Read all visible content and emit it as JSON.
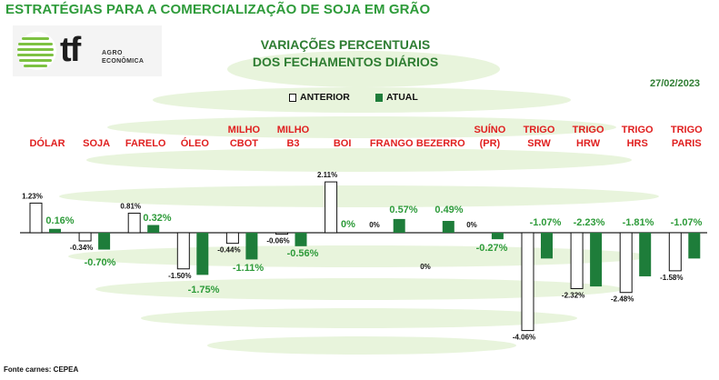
{
  "page_title": "ESTRATÉGIAS PARA A COMERCIALIZAÇÃO DE SOJA EM GRÃO",
  "logo": {
    "mark": "tf",
    "line1": "AGRO",
    "line2": "ECONÔMICA"
  },
  "chart_title_line1": "VARIAÇÕES PERCENTUAIS",
  "chart_title_line2": "DOS FECHAMENTOS DIÁRIOS",
  "date": "27/02/2023",
  "legend": {
    "anterior": "ANTERIOR",
    "atual": "ATUAL"
  },
  "source": "Fonte carnes: CEPEA",
  "colors": {
    "anterior_fill": "#ffffff",
    "anterior_border": "#111111",
    "atual": "#1e7d3a",
    "label_green": "#2e9b3a",
    "category_red": "#e02020",
    "title_green": "#2e7d32"
  },
  "chart_data": {
    "type": "bar",
    "categories": [
      [
        "DÓLAR"
      ],
      [
        "SOJA"
      ],
      [
        "FARELO"
      ],
      [
        "ÓLEO"
      ],
      [
        "MILHO",
        "CBOT"
      ],
      [
        "MILHO",
        "B3"
      ],
      [
        "BOI"
      ],
      [
        "FRANGO"
      ],
      [
        "BEZERRO"
      ],
      [
        "SUÍNO",
        "(PR)"
      ],
      [
        "TRIGO",
        "SRW"
      ],
      [
        "TRIGO",
        "HRW"
      ],
      [
        "TRIGO",
        "HRS"
      ],
      [
        "TRIGO",
        "PARIS"
      ]
    ],
    "series": [
      {
        "name": "ANTERIOR",
        "values": [
          1.23,
          -0.34,
          0.81,
          -1.5,
          -0.44,
          -0.06,
          2.11,
          0,
          0,
          0,
          -4.06,
          -2.32,
          -2.48,
          -1.58
        ],
        "labels": [
          "1.23%",
          "-0.34%",
          "0.81%",
          "-1.50%",
          "-0.44%",
          "-0.06%",
          "2.11%",
          "0%",
          "0%",
          "0%",
          "-4.06%",
          "-2.32%",
          "-2.48%",
          "-1.58%"
        ]
      },
      {
        "name": "ATUAL",
        "values": [
          0.16,
          -0.7,
          0.32,
          -1.75,
          -1.11,
          -0.56,
          0,
          0.57,
          0.49,
          -0.27,
          -1.07,
          -2.23,
          -1.81,
          -1.07
        ],
        "labels": [
          "0.16%",
          "-0.70%",
          "0.32%",
          "-1.75%",
          "-1.11%",
          "-0.56%",
          "0%",
          "0.57%",
          "0.49%",
          "-0.27%",
          "-1.07%",
          "-2.23%",
          "-1.81%",
          "-1.07%"
        ]
      }
    ],
    "grid": false,
    "legend_position": "top-center"
  }
}
